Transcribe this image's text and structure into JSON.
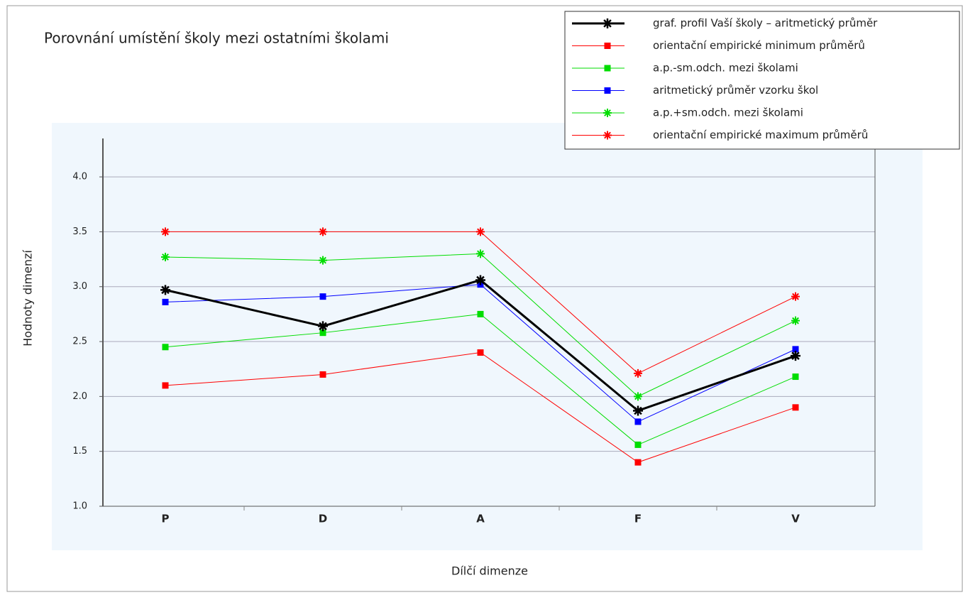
{
  "chart_data": {
    "type": "line",
    "title": "Porovnání umístění školy mezi ostatními školami",
    "x_label": "Dílčí dimenze",
    "y_label": "Hodnoty dimenzí",
    "categories": [
      "P",
      "D",
      "A",
      "F",
      "V"
    ],
    "ylim": [
      1,
      4.35
    ],
    "yticks": [
      {
        "value": 1,
        "label": "1.0"
      },
      1.5,
      {
        "value": 2,
        "label": "2.0"
      },
      2.5,
      {
        "value": 3,
        "label": "3.0"
      },
      3.5,
      {
        "value": 4,
        "label": "4.0"
      }
    ],
    "grid": true,
    "legend": "top-right",
    "series": [
      {
        "name": "graf. profil Vaší školy – aritmetický průměr",
        "color": "#000000",
        "marker": "star",
        "width": 3,
        "values": [
          2.97,
          2.64,
          3.06,
          1.87,
          2.37
        ]
      },
      {
        "name": "orientační empirické minimum průměrů",
        "color": "#ff0000",
        "marker": "square",
        "width": 1,
        "values": [
          2.1,
          2.2,
          2.4,
          1.4,
          1.9
        ]
      },
      {
        "name": "a.p.-sm.odch. mezi školami",
        "color": "#00dd00",
        "marker": "square",
        "width": 1,
        "values": [
          2.45,
          2.58,
          2.75,
          1.56,
          2.18
        ]
      },
      {
        "name": "aritmetický průměr vzorku škol",
        "color": "#0000ff",
        "marker": "square",
        "width": 1,
        "values": [
          2.86,
          2.91,
          3.02,
          1.77,
          2.43
        ]
      },
      {
        "name": "a.p.+sm.odch. mezi školami",
        "color": "#00dd00",
        "marker": "star",
        "width": 1,
        "values": [
          3.27,
          3.24,
          3.3,
          2.0,
          2.69
        ]
      },
      {
        "name": "orientační empirické maximum průměrů",
        "color": "#ff0000",
        "marker": "star",
        "width": 1,
        "values": [
          3.5,
          3.5,
          3.5,
          2.21,
          2.91
        ]
      }
    ]
  }
}
